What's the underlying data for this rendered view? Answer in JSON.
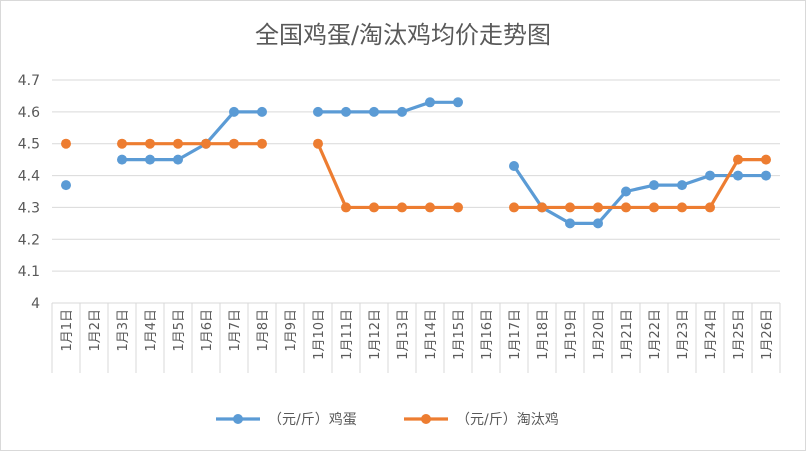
{
  "chart_data": {
    "type": "line",
    "title": "全国鸡蛋/淘汰鸡均价走势图",
    "categories": [
      "1月1日",
      "1月2日",
      "1月3日",
      "1月4日",
      "1月5日",
      "1月6日",
      "1月7日",
      "1月8日",
      "1月9日",
      "1月10日",
      "1月11日",
      "1月12日",
      "1月13日",
      "1月14日",
      "1月15日",
      "1月16日",
      "1月17日",
      "1月18日",
      "1月19日",
      "1月20日",
      "1月21日",
      "1月22日",
      "1月23日",
      "1月24日",
      "1月25日",
      "1月26日"
    ],
    "series": [
      {
        "name": "（元/斤）鸡蛋",
        "color": "#5b9bd5",
        "values": [
          4.37,
          null,
          4.45,
          4.45,
          4.45,
          4.5,
          4.6,
          4.6,
          null,
          4.6,
          4.6,
          4.6,
          4.6,
          4.63,
          4.63,
          null,
          4.43,
          4.3,
          4.25,
          4.25,
          4.35,
          4.37,
          4.37,
          4.4,
          4.4,
          4.4
        ]
      },
      {
        "name": "（元/斤）淘汰鸡",
        "color": "#ed7d31",
        "values": [
          4.5,
          null,
          4.5,
          4.5,
          4.5,
          4.5,
          4.5,
          4.5,
          null,
          4.5,
          4.3,
          4.3,
          4.3,
          4.3,
          4.3,
          null,
          4.3,
          4.3,
          4.3,
          4.3,
          4.3,
          4.3,
          4.3,
          4.3,
          4.45,
          4.45
        ]
      }
    ],
    "y_ticks": [
      "4",
      "4.1",
      "4.2",
      "4.3",
      "4.4",
      "4.5",
      "4.6",
      "4.7"
    ],
    "ylim": [
      4.0,
      4.7
    ],
    "grid": true,
    "legend": "bottom"
  }
}
